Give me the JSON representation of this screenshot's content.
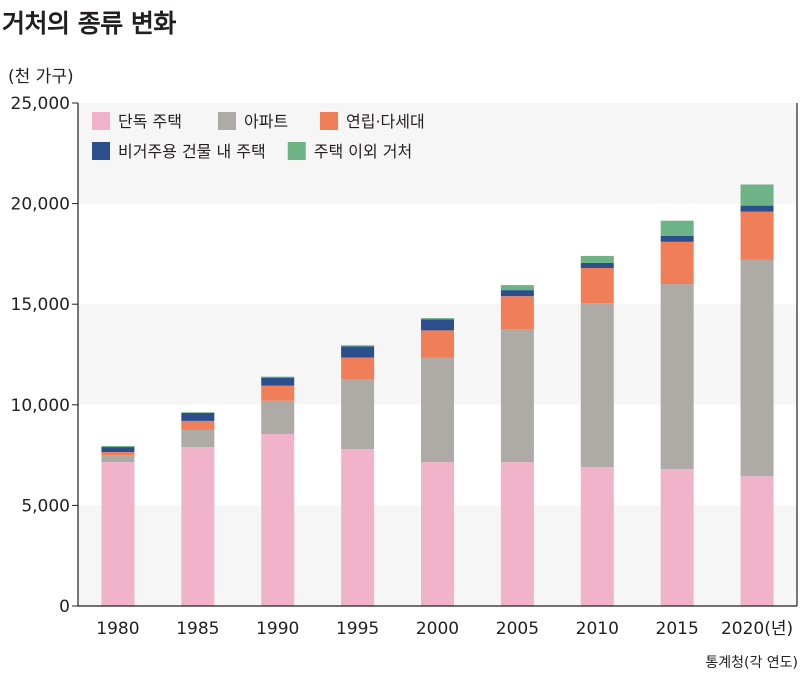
{
  "title": "거처의 종류 변화",
  "unit_label": "(천 가구)",
  "source": "통계청(각 연도)",
  "chart_data": {
    "type": "bar",
    "stacked": true,
    "title": "거처의 종류 변화",
    "ylabel": "(천 가구)",
    "xlabel": "",
    "ylim": [
      0,
      25000
    ],
    "yticks": [
      0,
      5000,
      10000,
      15000,
      20000,
      25000
    ],
    "ytick_labels": [
      "0",
      "5,000",
      "10,000",
      "15,000",
      "20,000",
      "25,000"
    ],
    "categories": [
      "1980",
      "1985",
      "1990",
      "1995",
      "2000",
      "2005",
      "2010",
      "2015",
      "2020(년)"
    ],
    "legend_position": "top-left",
    "series": [
      {
        "name": "단독 주택",
        "color": "#f0b3c9",
        "values": [
          7150,
          7900,
          8550,
          7800,
          7150,
          7150,
          6900,
          6800,
          6450
        ]
      },
      {
        "name": "아파트",
        "color": "#aeaaa6",
        "values": [
          350,
          850,
          1650,
          3450,
          5200,
          6600,
          8150,
          9200,
          10750
        ]
      },
      {
        "name": "연립·다세대",
        "color": "#f07f59",
        "values": [
          150,
          450,
          750,
          1100,
          1350,
          1650,
          1750,
          2100,
          2400
        ]
      },
      {
        "name": "비거주용 건물 내 주택",
        "color": "#2b4f8c",
        "values": [
          250,
          400,
          400,
          550,
          550,
          300,
          250,
          300,
          300
        ]
      },
      {
        "name": "주택 이외 거처",
        "color": "#6db385",
        "values": [
          50,
          30,
          50,
          60,
          60,
          250,
          350,
          750,
          1050
        ]
      }
    ]
  }
}
